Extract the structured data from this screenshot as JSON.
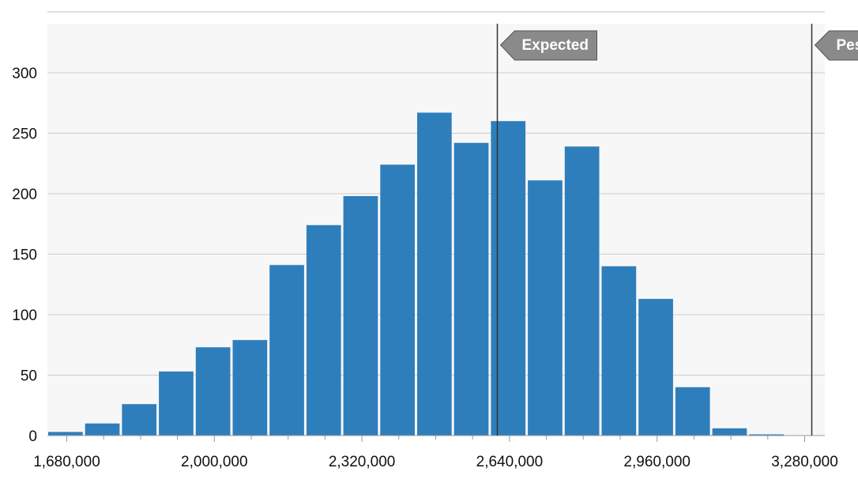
{
  "chart_data": {
    "type": "bar",
    "title": "",
    "xlabel": "",
    "ylabel": "",
    "bin_width": 80000,
    "xlim": [
      1680000,
      3280000
    ],
    "ylim": [
      0,
      340
    ],
    "x_ticks": [
      {
        "value": 1680000,
        "label": "1,680,000"
      },
      {
        "value": 2000000,
        "label": "2,000,000"
      },
      {
        "value": 2320000,
        "label": "2,320,000"
      },
      {
        "value": 2640000,
        "label": "2,640,000"
      },
      {
        "value": 2960000,
        "label": "2,960,000"
      },
      {
        "value": 3280000,
        "label": "3,280,000"
      }
    ],
    "y_ticks": [
      {
        "value": 0,
        "label": "0"
      },
      {
        "value": 50,
        "label": "50"
      },
      {
        "value": 100,
        "label": "100"
      },
      {
        "value": 150,
        "label": "150"
      },
      {
        "value": 200,
        "label": "200"
      },
      {
        "value": 250,
        "label": "250"
      },
      {
        "value": 300,
        "label": "300"
      }
    ],
    "bins": [
      {
        "start": 1680000,
        "count": 3
      },
      {
        "start": 1760000,
        "count": 10
      },
      {
        "start": 1840000,
        "count": 26
      },
      {
        "start": 1920000,
        "count": 53
      },
      {
        "start": 2000000,
        "count": 73
      },
      {
        "start": 2080000,
        "count": 79
      },
      {
        "start": 2160000,
        "count": 141
      },
      {
        "start": 2240000,
        "count": 174
      },
      {
        "start": 2320000,
        "count": 198
      },
      {
        "start": 2400000,
        "count": 224
      },
      {
        "start": 2480000,
        "count": 267
      },
      {
        "start": 2560000,
        "count": 242
      },
      {
        "start": 2640000,
        "count": 260
      },
      {
        "start": 2720000,
        "count": 211
      },
      {
        "start": 2800000,
        "count": 239
      },
      {
        "start": 2880000,
        "count": 140
      },
      {
        "start": 2960000,
        "count": 113
      },
      {
        "start": 3040000,
        "count": 40
      },
      {
        "start": 3120000,
        "count": 6
      },
      {
        "start": 3200000,
        "count": 1
      }
    ],
    "reference_lines": [
      {
        "x": 2612000,
        "label": "Expected"
      },
      {
        "x": 3295000,
        "label": "Pess"
      }
    ],
    "grid": true,
    "colors": {
      "bar": "#2f7ebc",
      "plot_background": "#f7f7f7",
      "grid": "#cccccc",
      "marker_line": "#333333",
      "flag_fill": "#8a8a8a",
      "flag_text": "#ffffff"
    }
  }
}
